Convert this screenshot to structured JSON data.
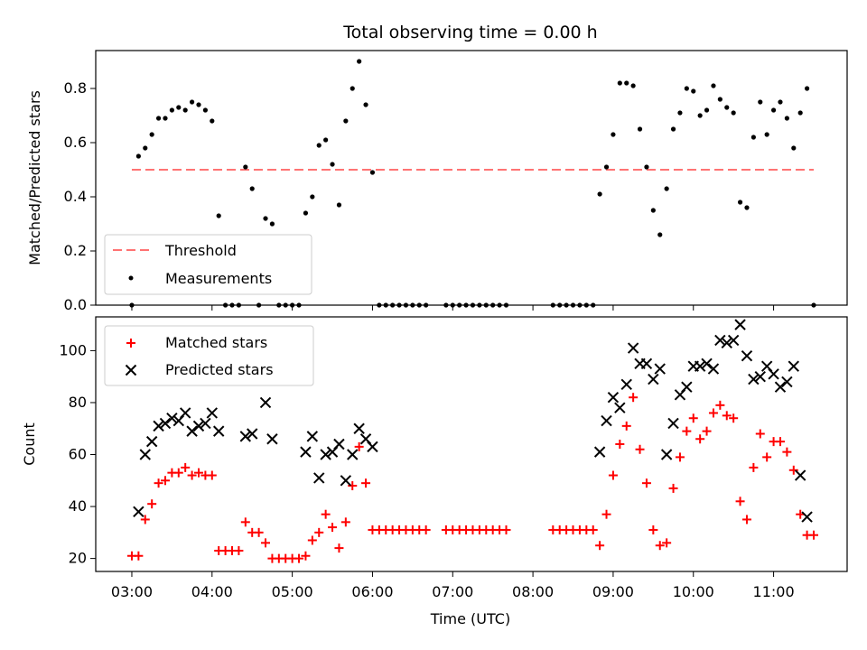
{
  "title": "Total observing time = 0.00 h",
  "colors": {
    "threshold": "#ff7373",
    "measure": "#000000",
    "matched": "#ff0000",
    "predicted": "#000000"
  },
  "chart_data": [
    {
      "type": "scatter",
      "panel": "top",
      "title": "Total observing time = 0.00 h",
      "xlabel": "",
      "ylabel": "Matched/Predicted stars",
      "xlim": [
        "02:33",
        "11:55"
      ],
      "ylim": [
        0,
        0.94
      ],
      "yticks": [
        0.0,
        0.2,
        0.4,
        0.6,
        0.8
      ],
      "ytick_labels": [
        "0.0",
        "0.2",
        "0.4",
        "0.6",
        "0.8"
      ],
      "legend": {
        "placement": "lower-left",
        "entries": [
          "Threshold",
          "Measurements"
        ]
      },
      "threshold": {
        "name": "Threshold",
        "y": 0.5,
        "x_start": "03:00",
        "x_end": "11:30"
      },
      "series": [
        {
          "name": "Measurements",
          "points": [
            [
              "03:00",
              0.0
            ],
            [
              "03:05",
              0.55
            ],
            [
              "03:10",
              0.58
            ],
            [
              "03:15",
              0.63
            ],
            [
              "03:20",
              0.69
            ],
            [
              "03:25",
              0.69
            ],
            [
              "03:30",
              0.72
            ],
            [
              "03:35",
              0.73
            ],
            [
              "03:40",
              0.72
            ],
            [
              "03:45",
              0.75
            ],
            [
              "03:50",
              0.74
            ],
            [
              "03:55",
              0.72
            ],
            [
              "04:00",
              0.68
            ],
            [
              "04:05",
              0.33
            ],
            [
              "04:10",
              0.0
            ],
            [
              "04:15",
              0.0
            ],
            [
              "04:20",
              0.0
            ],
            [
              "04:25",
              0.51
            ],
            [
              "04:30",
              0.43
            ],
            [
              "04:35",
              0.0
            ],
            [
              "04:40",
              0.32
            ],
            [
              "04:45",
              0.3
            ],
            [
              "04:50",
              0.0
            ],
            [
              "04:55",
              0.0
            ],
            [
              "05:00",
              0.0
            ],
            [
              "05:05",
              0.0
            ],
            [
              "05:10",
              0.34
            ],
            [
              "05:15",
              0.4
            ],
            [
              "05:20",
              0.59
            ],
            [
              "05:25",
              0.61
            ],
            [
              "05:30",
              0.52
            ],
            [
              "05:35",
              0.37
            ],
            [
              "05:40",
              0.68
            ],
            [
              "05:45",
              0.8
            ],
            [
              "05:50",
              0.9
            ],
            [
              "05:55",
              0.74
            ],
            [
              "06:00",
              0.49
            ],
            [
              "06:05",
              0.0
            ],
            [
              "06:10",
              0.0
            ],
            [
              "06:15",
              0.0
            ],
            [
              "06:20",
              0.0
            ],
            [
              "06:25",
              0.0
            ],
            [
              "06:30",
              0.0
            ],
            [
              "06:35",
              0.0
            ],
            [
              "06:40",
              0.0
            ],
            [
              "06:55",
              0.0
            ],
            [
              "07:00",
              0.0
            ],
            [
              "07:05",
              0.0
            ],
            [
              "07:10",
              0.0
            ],
            [
              "07:15",
              0.0
            ],
            [
              "07:20",
              0.0
            ],
            [
              "07:25",
              0.0
            ],
            [
              "07:30",
              0.0
            ],
            [
              "07:35",
              0.0
            ],
            [
              "07:40",
              0.0
            ],
            [
              "08:15",
              0.0
            ],
            [
              "08:20",
              0.0
            ],
            [
              "08:25",
              0.0
            ],
            [
              "08:30",
              0.0
            ],
            [
              "08:35",
              0.0
            ],
            [
              "08:40",
              0.0
            ],
            [
              "08:45",
              0.0
            ],
            [
              "08:50",
              0.41
            ],
            [
              "08:55",
              0.51
            ],
            [
              "09:00",
              0.63
            ],
            [
              "09:05",
              0.82
            ],
            [
              "09:10",
              0.82
            ],
            [
              "09:15",
              0.81
            ],
            [
              "09:20",
              0.65
            ],
            [
              "09:25",
              0.51
            ],
            [
              "09:30",
              0.35
            ],
            [
              "09:35",
              0.26
            ],
            [
              "09:40",
              0.43
            ],
            [
              "09:45",
              0.65
            ],
            [
              "09:50",
              0.71
            ],
            [
              "09:55",
              0.8
            ],
            [
              "10:00",
              0.79
            ],
            [
              "10:05",
              0.7
            ],
            [
              "10:10",
              0.72
            ],
            [
              "10:15",
              0.81
            ],
            [
              "10:20",
              0.76
            ],
            [
              "10:25",
              0.73
            ],
            [
              "10:30",
              0.71
            ],
            [
              "10:35",
              0.38
            ],
            [
              "10:40",
              0.36
            ],
            [
              "10:45",
              0.62
            ],
            [
              "10:50",
              0.75
            ],
            [
              "10:55",
              0.63
            ],
            [
              "11:00",
              0.72
            ],
            [
              "11:05",
              0.75
            ],
            [
              "11:10",
              0.69
            ],
            [
              "11:15",
              0.58
            ],
            [
              "11:20",
              0.71
            ],
            [
              "11:25",
              0.8
            ],
            [
              "11:30",
              0.0
            ]
          ]
        }
      ]
    },
    {
      "type": "scatter",
      "panel": "bottom",
      "xlabel": "Time (UTC)",
      "ylabel": "Count",
      "xlim": [
        "02:33",
        "11:55"
      ],
      "ylim": [
        15,
        113
      ],
      "xticks": [
        "03:00",
        "04:00",
        "05:00",
        "06:00",
        "07:00",
        "08:00",
        "09:00",
        "10:00",
        "11:00"
      ],
      "yticks": [
        20,
        40,
        60,
        80,
        100
      ],
      "ytick_labels": [
        "20",
        "40",
        "60",
        "80",
        "100"
      ],
      "legend": {
        "placement": "upper-left",
        "entries": [
          "Matched stars",
          "Predicted stars"
        ]
      },
      "series": [
        {
          "name": "Matched stars",
          "marker": "plus",
          "points": [
            [
              "03:00",
              21
            ],
            [
              "03:05",
              21
            ],
            [
              "03:10",
              35
            ],
            [
              "03:15",
              41
            ],
            [
              "03:20",
              49
            ],
            [
              "03:25",
              50
            ],
            [
              "03:30",
              53
            ],
            [
              "03:35",
              53
            ],
            [
              "03:40",
              55
            ],
            [
              "03:45",
              52
            ],
            [
              "03:50",
              53
            ],
            [
              "03:55",
              52
            ],
            [
              "04:00",
              52
            ],
            [
              "04:05",
              23
            ],
            [
              "04:10",
              23
            ],
            [
              "04:15",
              23
            ],
            [
              "04:20",
              23
            ],
            [
              "04:25",
              34
            ],
            [
              "04:30",
              30
            ],
            [
              "04:35",
              30
            ],
            [
              "04:40",
              26
            ],
            [
              "04:45",
              20
            ],
            [
              "04:50",
              20
            ],
            [
              "04:55",
              20
            ],
            [
              "05:00",
              20
            ],
            [
              "05:05",
              20
            ],
            [
              "05:10",
              21
            ],
            [
              "05:15",
              27
            ],
            [
              "05:20",
              30
            ],
            [
              "05:25",
              37
            ],
            [
              "05:30",
              32
            ],
            [
              "05:35",
              24
            ],
            [
              "05:40",
              34
            ],
            [
              "05:45",
              48
            ],
            [
              "05:50",
              63
            ],
            [
              "05:55",
              49
            ],
            [
              "06:00",
              31
            ],
            [
              "06:05",
              31
            ],
            [
              "06:10",
              31
            ],
            [
              "06:15",
              31
            ],
            [
              "06:20",
              31
            ],
            [
              "06:25",
              31
            ],
            [
              "06:30",
              31
            ],
            [
              "06:35",
              31
            ],
            [
              "06:40",
              31
            ],
            [
              "06:55",
              31
            ],
            [
              "07:00",
              31
            ],
            [
              "07:05",
              31
            ],
            [
              "07:10",
              31
            ],
            [
              "07:15",
              31
            ],
            [
              "07:20",
              31
            ],
            [
              "07:25",
              31
            ],
            [
              "07:30",
              31
            ],
            [
              "07:35",
              31
            ],
            [
              "07:40",
              31
            ],
            [
              "08:15",
              31
            ],
            [
              "08:20",
              31
            ],
            [
              "08:25",
              31
            ],
            [
              "08:30",
              31
            ],
            [
              "08:35",
              31
            ],
            [
              "08:40",
              31
            ],
            [
              "08:45",
              31
            ],
            [
              "08:50",
              25
            ],
            [
              "08:55",
              37
            ],
            [
              "09:00",
              52
            ],
            [
              "09:05",
              64
            ],
            [
              "09:10",
              71
            ],
            [
              "09:15",
              82
            ],
            [
              "09:20",
              62
            ],
            [
              "09:25",
              49
            ],
            [
              "09:30",
              31
            ],
            [
              "09:35",
              25
            ],
            [
              "09:40",
              26
            ],
            [
              "09:45",
              47
            ],
            [
              "09:50",
              59
            ],
            [
              "09:55",
              69
            ],
            [
              "10:00",
              74
            ],
            [
              "10:05",
              66
            ],
            [
              "10:10",
              69
            ],
            [
              "10:15",
              76
            ],
            [
              "10:20",
              79
            ],
            [
              "10:25",
              75
            ],
            [
              "10:30",
              74
            ],
            [
              "10:35",
              42
            ],
            [
              "10:40",
              35
            ],
            [
              "10:45",
              55
            ],
            [
              "10:50",
              68
            ],
            [
              "10:55",
              59
            ],
            [
              "11:00",
              65
            ],
            [
              "11:05",
              65
            ],
            [
              "11:10",
              61
            ],
            [
              "11:15",
              54
            ],
            [
              "11:20",
              37
            ],
            [
              "11:25",
              29
            ],
            [
              "11:30",
              29
            ]
          ]
        },
        {
          "name": "Predicted stars",
          "marker": "x",
          "points": [
            [
              "03:05",
              38
            ],
            [
              "03:10",
              60
            ],
            [
              "03:15",
              65
            ],
            [
              "03:20",
              71
            ],
            [
              "03:25",
              72
            ],
            [
              "03:30",
              74
            ],
            [
              "03:35",
              73
            ],
            [
              "03:40",
              76
            ],
            [
              "03:45",
              69
            ],
            [
              "03:50",
              71
            ],
            [
              "03:55",
              72
            ],
            [
              "04:00",
              76
            ],
            [
              "04:05",
              69
            ],
            [
              "04:25",
              67
            ],
            [
              "04:30",
              68
            ],
            [
              "04:40",
              80
            ],
            [
              "04:45",
              66
            ],
            [
              "05:10",
              61
            ],
            [
              "05:15",
              67
            ],
            [
              "05:20",
              51
            ],
            [
              "05:25",
              60
            ],
            [
              "05:30",
              61
            ],
            [
              "05:35",
              64
            ],
            [
              "05:40",
              50
            ],
            [
              "05:45",
              60
            ],
            [
              "05:50",
              70
            ],
            [
              "05:55",
              66
            ],
            [
              "06:00",
              63
            ],
            [
              "08:50",
              61
            ],
            [
              "08:55",
              73
            ],
            [
              "09:00",
              82
            ],
            [
              "09:05",
              78
            ],
            [
              "09:10",
              87
            ],
            [
              "09:15",
              101
            ],
            [
              "09:20",
              95
            ],
            [
              "09:25",
              95
            ],
            [
              "09:30",
              89
            ],
            [
              "09:35",
              93
            ],
            [
              "09:40",
              60
            ],
            [
              "09:45",
              72
            ],
            [
              "09:50",
              83
            ],
            [
              "09:55",
              86
            ],
            [
              "10:00",
              94
            ],
            [
              "10:05",
              94
            ],
            [
              "10:10",
              95
            ],
            [
              "10:15",
              93
            ],
            [
              "10:20",
              104
            ],
            [
              "10:25",
              103
            ],
            [
              "10:30",
              104
            ],
            [
              "10:35",
              110
            ],
            [
              "10:40",
              98
            ],
            [
              "10:45",
              89
            ],
            [
              "10:50",
              90
            ],
            [
              "10:55",
              94
            ],
            [
              "11:00",
              91
            ],
            [
              "11:05",
              86
            ],
            [
              "11:10",
              88
            ],
            [
              "11:15",
              94
            ],
            [
              "11:20",
              52
            ],
            [
              "11:25",
              36
            ]
          ]
        }
      ]
    }
  ]
}
